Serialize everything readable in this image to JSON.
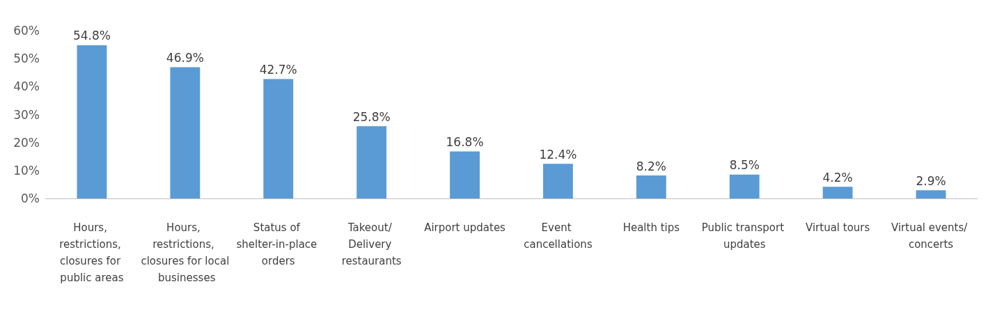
{
  "chart_data": {
    "type": "bar",
    "categories": [
      "Hours, restrictions, closures for public areas",
      "Hours, restrictions, closures for local businesses",
      "Status of shelter-in-place orders",
      "Takeout/ Delivery restaurants",
      "Airport updates",
      "Event cancellations",
      "Health tips",
      "Public transport updates",
      "Virtual tours",
      "Virtual events/ concerts"
    ],
    "values": [
      54.8,
      46.9,
      42.7,
      25.8,
      16.8,
      12.4,
      8.2,
      8.5,
      4.2,
      2.9
    ],
    "value_labels": [
      "54.8%",
      "46.9%",
      "42.7%",
      "25.8%",
      "16.8%",
      "12.4%",
      "8.2%",
      "8.5%",
      "4.2%",
      "2.9%"
    ],
    "color": "#5b9bd5",
    "ylim": [
      0,
      60
    ],
    "yticks": [
      {
        "value": 0,
        "label": "0%"
      },
      {
        "value": 10,
        "label": "10%"
      },
      {
        "value": 20,
        "label": "20%"
      },
      {
        "value": 30,
        "label": "30%"
      },
      {
        "value": 40,
        "label": "40%"
      },
      {
        "value": 50,
        "label": "50%"
      },
      {
        "value": 60,
        "label": "60%"
      }
    ]
  }
}
